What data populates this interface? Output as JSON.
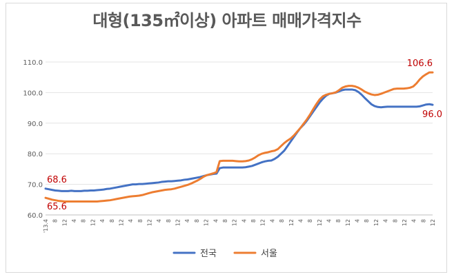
{
  "chart_data": {
    "type": "line",
    "title": "대형(135㎡이상) 아파트 매매가격지수",
    "xlabel": "",
    "ylabel": "",
    "ylim": [
      60,
      110
    ],
    "yticks": [
      "60.0",
      "70.0",
      "80.0",
      "90.0",
      "100.0",
      "110.0"
    ],
    "grid": "horizontal",
    "legend_position": "bottom",
    "x_tick_labels": [
      "'13.4",
      "8",
      "12",
      "4",
      "8",
      "12",
      "4",
      "8",
      "12",
      "4",
      "8",
      "12",
      "4",
      "8",
      "12",
      "4",
      "8",
      "12",
      "4",
      "8",
      "12",
      "4",
      "8",
      "12",
      "4",
      "8",
      "12",
      "4",
      "8",
      "12",
      "4",
      "8",
      "12",
      "4",
      "8",
      "12",
      "4",
      "8",
      "12",
      "4",
      "8",
      "12"
    ],
    "series": [
      {
        "name": "전국",
        "color": "#4472c4",
        "values": [
          68.6,
          68.4,
          68.2,
          68.0,
          67.9,
          67.8,
          67.8,
          67.8,
          67.9,
          67.8,
          67.8,
          67.8,
          67.9,
          67.9,
          68.0,
          68.0,
          68.1,
          68.2,
          68.3,
          68.5,
          68.6,
          68.8,
          69.0,
          69.2,
          69.4,
          69.6,
          69.8,
          70.0,
          70.0,
          70.1,
          70.1,
          70.2,
          70.3,
          70.4,
          70.5,
          70.6,
          70.8,
          70.9,
          71.0,
          71.0,
          71.1,
          71.2,
          71.3,
          71.5,
          71.6,
          71.8,
          72.0,
          72.2,
          72.4,
          72.7,
          73.0,
          73.2,
          73.4,
          73.5,
          75.3,
          75.5,
          75.5,
          75.5,
          75.5,
          75.5,
          75.5,
          75.5,
          75.6,
          75.8,
          76.0,
          76.4,
          76.8,
          77.2,
          77.5,
          77.7,
          77.8,
          78.3,
          79.0,
          80.0,
          81.0,
          82.5,
          84.0,
          85.5,
          87.0,
          88.4,
          89.5,
          90.8,
          92.3,
          93.8,
          95.3,
          96.8,
          98.0,
          99.0,
          99.6,
          99.8,
          100.0,
          100.4,
          100.8,
          101.0,
          101.0,
          101.0,
          100.8,
          100.2,
          99.3,
          98.2,
          97.2,
          96.2,
          95.6,
          95.3,
          95.2,
          95.3,
          95.4,
          95.4,
          95.4,
          95.4,
          95.4,
          95.4,
          95.4,
          95.4,
          95.4,
          95.4,
          95.5,
          95.8,
          96.1,
          96.2,
          96.0
        ],
        "labels": {
          "first": "68.6",
          "last": "96.0"
        }
      },
      {
        "name": "서울",
        "color": "#ed7d31",
        "values": [
          65.6,
          65.3,
          65.0,
          64.8,
          64.6,
          64.5,
          64.4,
          64.4,
          64.4,
          64.4,
          64.4,
          64.4,
          64.4,
          64.4,
          64.4,
          64.4,
          64.4,
          64.5,
          64.6,
          64.7,
          64.8,
          65.0,
          65.2,
          65.4,
          65.6,
          65.8,
          66.0,
          66.1,
          66.2,
          66.3,
          66.5,
          66.8,
          67.1,
          67.4,
          67.6,
          67.8,
          68.0,
          68.2,
          68.3,
          68.4,
          68.6,
          68.9,
          69.2,
          69.5,
          69.8,
          70.2,
          70.7,
          71.2,
          71.8,
          72.5,
          73.0,
          73.3,
          73.6,
          74.0,
          77.6,
          77.7,
          77.7,
          77.7,
          77.7,
          77.6,
          77.5,
          77.5,
          77.6,
          77.8,
          78.2,
          78.8,
          79.5,
          80.0,
          80.3,
          80.5,
          80.8,
          81.0,
          81.5,
          82.5,
          83.5,
          84.3,
          85.0,
          86.0,
          87.2,
          88.4,
          89.8,
          91.2,
          92.8,
          94.6,
          96.3,
          97.8,
          98.8,
          99.3,
          99.6,
          99.8,
          100.1,
          100.8,
          101.6,
          102.0,
          102.2,
          102.2,
          102.0,
          101.6,
          101.0,
          100.3,
          99.8,
          99.4,
          99.2,
          99.3,
          99.6,
          100.0,
          100.4,
          100.8,
          101.2,
          101.3,
          101.3,
          101.3,
          101.4,
          101.6,
          102.0,
          103.0,
          104.3,
          105.3,
          106.0,
          106.6,
          106.6
        ],
        "labels": {
          "first": "65.6",
          "last": "106.6"
        }
      }
    ]
  }
}
